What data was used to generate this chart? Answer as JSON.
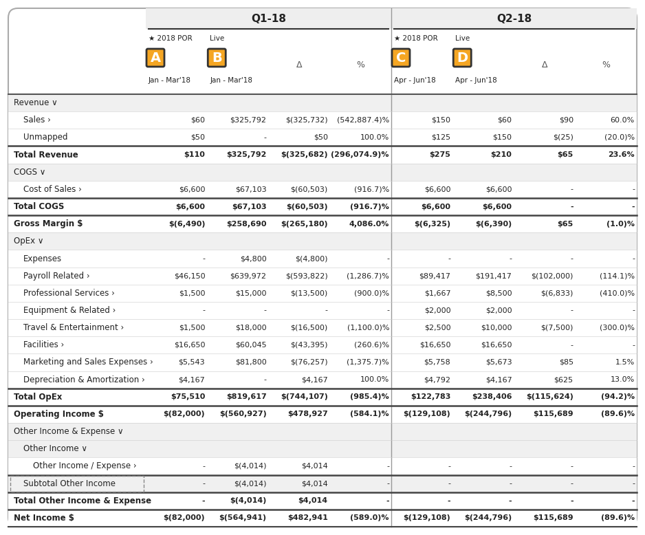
{
  "q1_header": "Q1-18",
  "q2_header": "Q2-18",
  "col_headers": [
    {
      "label": "★ 2018 POR",
      "sublabel": "A",
      "date": "Jan - Mar'18"
    },
    {
      "label": "Live",
      "sublabel": "B",
      "date": "Jan - Mar'18"
    },
    {
      "label": "Δ",
      "sublabel": "",
      "date": ""
    },
    {
      "label": "%",
      "sublabel": "",
      "date": ""
    },
    {
      "label": "★ 2018 POR",
      "sublabel": "C",
      "date": "Apr - Jun'18"
    },
    {
      "label": "Live",
      "sublabel": "D",
      "date": "Apr - Jun'18"
    },
    {
      "label": "Δ",
      "sublabel": "",
      "date": ""
    },
    {
      "label": "%",
      "sublabel": "",
      "date": ""
    }
  ],
  "rows": [
    {
      "label": "Revenue ∨",
      "indent": 0,
      "bold": false,
      "section_header": true,
      "values": [
        "",
        "",
        "",
        "",
        "",
        "",
        "",
        ""
      ]
    },
    {
      "label": "Sales ›",
      "indent": 1,
      "bold": false,
      "section_header": false,
      "values": [
        "$60",
        "$325,792",
        "$(325,732)",
        "(542,887.4)%",
        "$150",
        "$60",
        "$90",
        "60.0%"
      ]
    },
    {
      "label": "Unmapped",
      "indent": 1,
      "bold": false,
      "section_header": false,
      "values": [
        "$50",
        "-",
        "$50",
        "100.0%",
        "$125",
        "$150",
        "$(25)",
        "(20.0)%"
      ]
    },
    {
      "label": "Total Revenue",
      "indent": 0,
      "bold": true,
      "section_header": false,
      "values": [
        "$110",
        "$325,792",
        "$(325,682)",
        "(296,074.9)%",
        "$275",
        "$210",
        "$65",
        "23.6%"
      ]
    },
    {
      "label": "COGS ∨",
      "indent": 0,
      "bold": false,
      "section_header": true,
      "values": [
        "",
        "",
        "",
        "",
        "",
        "",
        "",
        ""
      ]
    },
    {
      "label": "Cost of Sales ›",
      "indent": 1,
      "bold": false,
      "section_header": false,
      "values": [
        "$6,600",
        "$67,103",
        "$(60,503)",
        "(916.7)%",
        "$6,600",
        "$6,600",
        "-",
        "-"
      ]
    },
    {
      "label": "Total COGS",
      "indent": 0,
      "bold": true,
      "section_header": false,
      "values": [
        "$6,600",
        "$67,103",
        "$(60,503)",
        "(916.7)%",
        "$6,600",
        "$6,600",
        "-",
        "-"
      ]
    },
    {
      "label": "Gross Margin $",
      "indent": 0,
      "bold": true,
      "section_header": false,
      "values": [
        "$(6,490)",
        "$258,690",
        "$(265,180)",
        "4,086.0%",
        "$(6,325)",
        "$(6,390)",
        "$65",
        "(1.0)%"
      ]
    },
    {
      "label": "OpEx ∨",
      "indent": 0,
      "bold": false,
      "section_header": true,
      "values": [
        "",
        "",
        "",
        "",
        "",
        "",
        "",
        ""
      ]
    },
    {
      "label": "Expenses",
      "indent": 1,
      "bold": false,
      "section_header": false,
      "values": [
        "-",
        "$4,800",
        "$(4,800)",
        "-",
        "-",
        "-",
        "-",
        "-"
      ]
    },
    {
      "label": "Payroll Related ›",
      "indent": 1,
      "bold": false,
      "section_header": false,
      "values": [
        "$46,150",
        "$639,972",
        "$(593,822)",
        "(1,286.7)%",
        "$89,417",
        "$191,417",
        "$(102,000)",
        "(114.1)%"
      ]
    },
    {
      "label": "Professional Services ›",
      "indent": 1,
      "bold": false,
      "section_header": false,
      "values": [
        "$1,500",
        "$15,000",
        "$(13,500)",
        "(900.0)%",
        "$1,667",
        "$8,500",
        "$(6,833)",
        "(410.0)%"
      ]
    },
    {
      "label": "Equipment & Related ›",
      "indent": 1,
      "bold": false,
      "section_header": false,
      "values": [
        "-",
        "-",
        "-",
        "-",
        "$2,000",
        "$2,000",
        "-",
        "-"
      ]
    },
    {
      "label": "Travel & Entertainment ›",
      "indent": 1,
      "bold": false,
      "section_header": false,
      "values": [
        "$1,500",
        "$18,000",
        "$(16,500)",
        "(1,100.0)%",
        "$2,500",
        "$10,000",
        "$(7,500)",
        "(300.0)%"
      ]
    },
    {
      "label": "Facilities ›",
      "indent": 1,
      "bold": false,
      "section_header": false,
      "values": [
        "$16,650",
        "$60,045",
        "$(43,395)",
        "(260.6)%",
        "$16,650",
        "$16,650",
        "-",
        "-"
      ]
    },
    {
      "label": "Marketing and Sales Expenses ›",
      "indent": 1,
      "bold": false,
      "section_header": false,
      "values": [
        "$5,543",
        "$81,800",
        "$(76,257)",
        "(1,375.7)%",
        "$5,758",
        "$5,673",
        "$85",
        "1.5%"
      ]
    },
    {
      "label": "Depreciation & Amortization ›",
      "indent": 1,
      "bold": false,
      "section_header": false,
      "values": [
        "$4,167",
        "-",
        "$4,167",
        "100.0%",
        "$4,792",
        "$4,167",
        "$625",
        "13.0%"
      ]
    },
    {
      "label": "Total OpEx",
      "indent": 0,
      "bold": true,
      "section_header": false,
      "values": [
        "$75,510",
        "$819,617",
        "$(744,107)",
        "(985.4)%",
        "$122,783",
        "$238,406",
        "$(115,624)",
        "(94.2)%"
      ]
    },
    {
      "label": "Operating Income $",
      "indent": 0,
      "bold": true,
      "section_header": false,
      "values": [
        "$(82,000)",
        "$(560,927)",
        "$478,927",
        "(584.1)%",
        "$(129,108)",
        "$(244,796)",
        "$115,689",
        "(89.6)%"
      ]
    },
    {
      "label": "Other Income & Expense ∨",
      "indent": 0,
      "bold": false,
      "section_header": true,
      "values": [
        "",
        "",
        "",
        "",
        "",
        "",
        "",
        ""
      ]
    },
    {
      "label": "Other Income ∨",
      "indent": 1,
      "bold": false,
      "section_header": true,
      "values": [
        "",
        "",
        "",
        "",
        "",
        "",
        "",
        ""
      ]
    },
    {
      "label": "Other Income / Expense ›",
      "indent": 2,
      "bold": false,
      "section_header": false,
      "values": [
        "-",
        "$(4,014)",
        "$4,014",
        "-",
        "-",
        "-",
        "-",
        "-"
      ]
    },
    {
      "label": "Subtotal Other Income",
      "indent": 1,
      "bold": false,
      "section_header": false,
      "subtotal_box": true,
      "values": [
        "-",
        "$(4,014)",
        "$4,014",
        "-",
        "-",
        "-",
        "-",
        "-"
      ]
    },
    {
      "label": "Total Other Income & Expense",
      "indent": 0,
      "bold": true,
      "section_header": false,
      "values": [
        "-",
        "$(4,014)",
        "$4,014",
        "-",
        "-",
        "-",
        "-",
        "-"
      ]
    },
    {
      "label": "Net Income $",
      "indent": 0,
      "bold": true,
      "section_header": false,
      "values": [
        "$(82,000)",
        "$(564,941)",
        "$482,941",
        "(589.0)%",
        "$(129,108)",
        "$(244,796)",
        "$115,689",
        "(89.6)%"
      ]
    }
  ],
  "thick_border_above": [
    3,
    6,
    7,
    17,
    18,
    22,
    23,
    24
  ],
  "orange_color": "#F5A623",
  "text_color": "#222222",
  "section_bg": "#f0f0f0",
  "white_bg": "#ffffff"
}
